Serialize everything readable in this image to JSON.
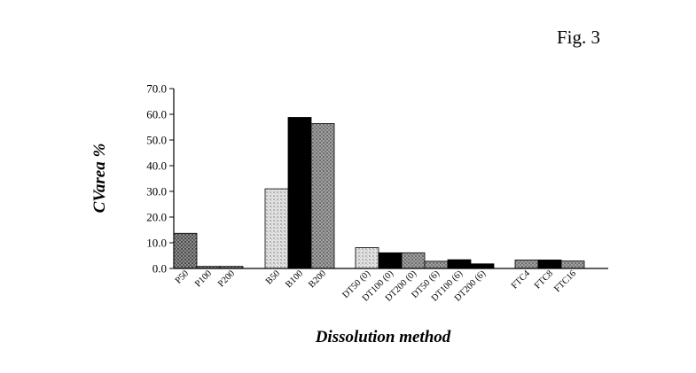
{
  "figure_label": "Fig. 3",
  "colors": {
    "pattern_a": "#6a6a6a",
    "pattern_b_light": "#cfcfcf",
    "solid_black": "#000000",
    "pattern_c": "#8a8a8a"
  },
  "chart_data": {
    "type": "bar",
    "title": "",
    "xlabel": "Dissolution method",
    "ylabel": "CVarea %",
    "ylim": [
      0,
      70
    ],
    "yticks": [
      "0.0",
      "10.0",
      "20.0",
      "30.0",
      "40.0",
      "50.0",
      "60.0",
      "70.0"
    ],
    "grid": false,
    "categories": [
      "P50",
      "P100",
      "P200",
      "B50",
      "B100",
      "B200",
      "DT50 (0)",
      "DT100 (0)",
      "DT200 (0)",
      "DT50 (6)",
      "DT100 (6)",
      "DT200 (6)",
      "FTC4",
      "FTC8",
      "FTC16"
    ],
    "values": [
      13.7,
      0.8,
      0.8,
      31.0,
      58.8,
      56.4,
      8.1,
      6.1,
      6.1,
      2.8,
      3.4,
      1.8,
      3.3,
      3.3,
      2.9
    ],
    "bar_styles": [
      "pattern_a",
      "pattern_a",
      "pattern_a",
      "pattern_b_light",
      "solid_black",
      "pattern_c",
      "pattern_b_light",
      "solid_black",
      "pattern_c",
      "pattern_c",
      "solid_black",
      "solid_black",
      "pattern_c",
      "solid_black",
      "pattern_c"
    ]
  }
}
